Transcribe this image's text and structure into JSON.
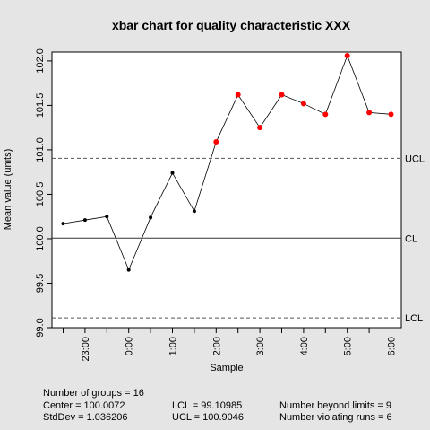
{
  "chart_data": {
    "type": "line",
    "title": "xbar chart for quality characteristic XXX",
    "xlabel": "Sample",
    "ylabel": "Mean value (units)",
    "ylim": [
      99.0,
      102.1
    ],
    "y_ticks": [
      "99.0",
      "99.5",
      "100.0",
      "100.5",
      "101.0",
      "101.5",
      "102.0"
    ],
    "x_tick_labels": [
      "23:00",
      "0:00",
      "1:00",
      "2:00",
      "3:00",
      "4:00",
      "5:00",
      "6:00"
    ],
    "x_minor_ticks": 16,
    "grid": false,
    "series": [
      {
        "values": [
          100.17,
          100.21,
          100.25,
          99.65,
          100.24,
          100.74,
          100.31,
          101.09,
          101.62,
          101.25,
          101.62,
          101.52,
          101.4,
          102.06,
          101.42,
          101.4
        ],
        "beyond_limits": [
          false,
          false,
          false,
          false,
          false,
          false,
          false,
          true,
          true,
          true,
          true,
          true,
          true,
          true,
          true,
          true
        ]
      }
    ],
    "control_limits": {
      "UCL": {
        "label": "UCL",
        "value": 100.9046
      },
      "CL": {
        "label": "CL",
        "value": 100.0072
      },
      "LCL": {
        "label": "LCL",
        "value": 99.10985
      }
    },
    "colors": {
      "normal_point": "#000000",
      "beyond_point": "#ff0000",
      "line": "#000000",
      "background": "#e5e5e5",
      "plot_bg": "#ffffff"
    }
  },
  "stats": {
    "groups": "Number of groups = 16",
    "center": "Center = 100.0072",
    "stddev": "StdDev = 1.036206",
    "lcl": "LCL = 99.10985",
    "ucl": "UCL = 100.9046",
    "beyond": "Number beyond limits = 9",
    "runs": "Number violating runs = 6"
  }
}
